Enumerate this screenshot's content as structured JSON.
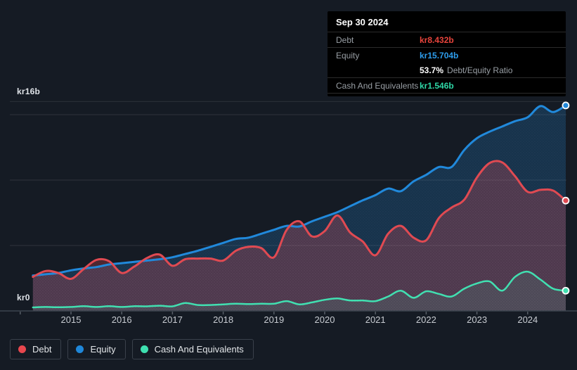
{
  "colors": {
    "background": "#151b24",
    "tooltip_bg": "#000000",
    "debt_line": "#e04a52",
    "equity_line": "#2189db",
    "cash_line": "#41e0b1",
    "debt_legend_dot": "#e8474e",
    "equity_legend_dot": "#1f87d9",
    "cash_legend_dot": "#3ee0b0",
    "debt_value": "#e8443c",
    "equity_value": "#2d9ceb",
    "cash_value": "#2fd7a7"
  },
  "tooltip": {
    "date": "Sep 30 2024",
    "debt_label": "Debt",
    "debt_value": "kr8.432b",
    "equity_label": "Equity",
    "equity_value": "kr15.704b",
    "ratio_value": "53.7%",
    "ratio_label": "Debt/Equity Ratio",
    "cash_label": "Cash And Equivalents",
    "cash_value": "kr1.546b"
  },
  "axes": {
    "y_top_label": "kr16b",
    "y_bottom_label": "kr0",
    "x_labels": [
      "2015",
      "2016",
      "2017",
      "2018",
      "2019",
      "2020",
      "2021",
      "2022",
      "2023",
      "2024"
    ]
  },
  "legend": {
    "items": [
      {
        "label": "Debt",
        "key": "debt"
      },
      {
        "label": "Equity",
        "key": "equity"
      },
      {
        "label": "Cash And Equivalents",
        "key": "cash"
      }
    ]
  },
  "chart_data": {
    "type": "area",
    "title": "Debt to Equity History and Analysis",
    "unit": "kr billions (SEK)",
    "x": [
      2014.25,
      2014.5,
      2014.75,
      2015,
      2015.25,
      2015.5,
      2015.75,
      2016,
      2016.25,
      2016.5,
      2016.75,
      2017,
      2017.25,
      2017.5,
      2017.75,
      2018,
      2018.25,
      2018.5,
      2018.75,
      2019,
      2019.25,
      2019.5,
      2019.75,
      2020,
      2020.25,
      2020.5,
      2020.75,
      2021,
      2021.25,
      2021.5,
      2021.75,
      2022,
      2022.25,
      2022.5,
      2022.75,
      2023,
      2023.25,
      2023.5,
      2023.75,
      2024,
      2024.25,
      2024.5,
      2024.75
    ],
    "series": [
      {
        "name": "Equity",
        "values": [
          2.7,
          2.8,
          2.9,
          3.1,
          3.25,
          3.35,
          3.55,
          3.65,
          3.75,
          3.85,
          3.95,
          4.1,
          4.35,
          4.6,
          4.9,
          5.2,
          5.5,
          5.6,
          5.9,
          6.2,
          6.5,
          6.45,
          6.85,
          7.2,
          7.55,
          8.0,
          8.45,
          8.85,
          9.35,
          9.15,
          9.9,
          10.4,
          11.0,
          11.0,
          12.3,
          13.2,
          13.7,
          14.1,
          14.5,
          14.8,
          15.65,
          15.2,
          15.704
        ]
      },
      {
        "name": "Debt",
        "values": [
          2.6,
          3.05,
          2.9,
          2.45,
          3.2,
          3.9,
          3.8,
          2.9,
          3.4,
          4.05,
          4.3,
          3.45,
          3.95,
          4.0,
          4.0,
          3.85,
          4.6,
          4.9,
          4.8,
          4.1,
          6.2,
          6.85,
          5.7,
          6.1,
          7.3,
          6.0,
          5.3,
          4.25,
          5.9,
          6.5,
          5.6,
          5.4,
          7.1,
          7.9,
          8.5,
          10.2,
          11.3,
          11.35,
          10.3,
          9.1,
          9.25,
          9.2,
          8.432
        ]
      },
      {
        "name": "Cash And Equivalents",
        "values": [
          0.27,
          0.3,
          0.28,
          0.3,
          0.36,
          0.3,
          0.36,
          0.3,
          0.36,
          0.35,
          0.4,
          0.35,
          0.6,
          0.45,
          0.45,
          0.5,
          0.55,
          0.52,
          0.55,
          0.55,
          0.75,
          0.5,
          0.65,
          0.85,
          0.95,
          0.8,
          0.8,
          0.75,
          1.1,
          1.55,
          1.0,
          1.5,
          1.3,
          1.1,
          1.7,
          2.1,
          2.25,
          1.55,
          2.6,
          3.0,
          2.4,
          1.7,
          1.546
        ]
      }
    ],
    "last_point": {
      "date": "Sep 30 2024",
      "Debt": 8.432,
      "Equity": 15.704,
      "Cash And Equivalents": 1.546,
      "debt_equity_ratio_pct": 53.7
    },
    "ylim": [
      0,
      16
    ],
    "gridline_values_b": [
      0,
      5,
      10,
      15,
      16
    ],
    "labeled_gridlines": [
      "kr16b",
      "kr0"
    ],
    "xtick_years": [
      2014,
      2015,
      2016,
      2017,
      2018,
      2019,
      2020,
      2021,
      2022,
      2023,
      2024
    ],
    "grid": true,
    "legend_position": "bottom-left"
  }
}
